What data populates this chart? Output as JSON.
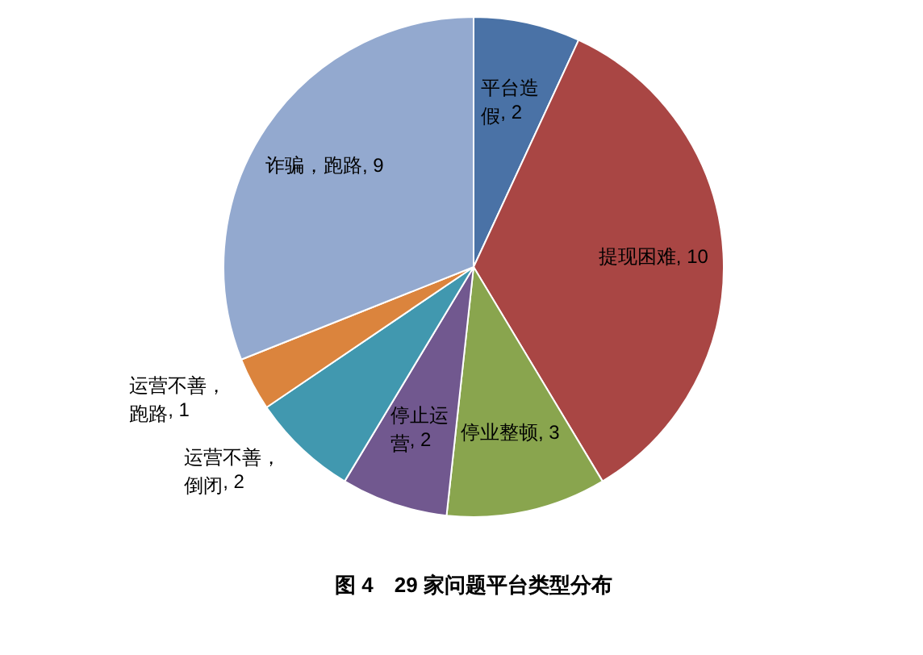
{
  "chart_data": {
    "type": "pie",
    "title": "图 4　29 家问题平台类型分布",
    "categories": [
      "平台造假",
      "提现困难",
      "停业整顿",
      "停止运营",
      "运营不善，倒闭",
      "运营不善，跑路",
      "诈骗，跑路"
    ],
    "values": [
      2,
      10,
      3,
      2,
      2,
      1,
      9
    ],
    "colors": [
      "#4a72a6",
      "#a94644",
      "#89a54e",
      "#71588f",
      "#4198af",
      "#db843d",
      "#93a9cf"
    ],
    "value_labels": [
      ", 2",
      ", 10",
      ", 3",
      ", 2",
      ", 2",
      ", 1",
      ", 9"
    ]
  }
}
